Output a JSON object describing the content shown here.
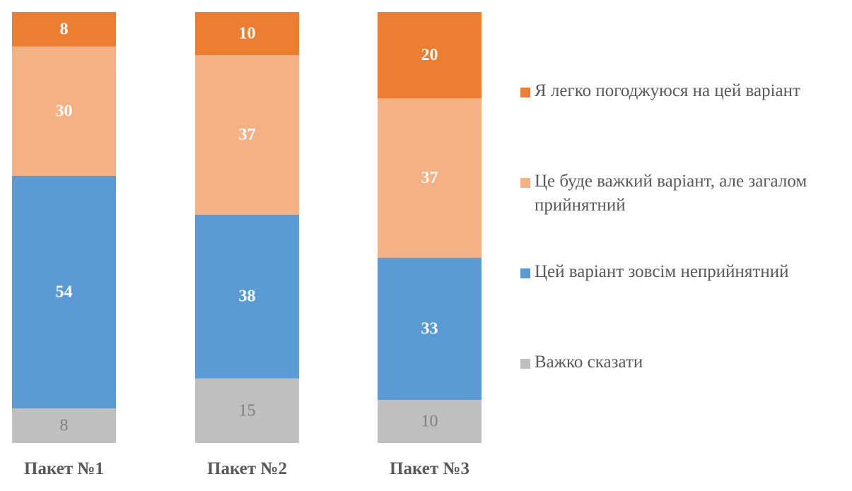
{
  "chart_data": {
    "type": "bar",
    "stacked": true,
    "orientation": "vertical",
    "categories": [
      "Пакет №1",
      "Пакет №2",
      "Пакет №3"
    ],
    "series": [
      {
        "name": "Важко сказати",
        "color": "#BFBFBF",
        "label_color": "#7F7F7F",
        "values": [
          8,
          15,
          10
        ]
      },
      {
        "name": "Цей варіант зовсім неприйнятний",
        "color": "#5B9BD5",
        "label_color": "#FFFFFF",
        "values": [
          54,
          38,
          33
        ]
      },
      {
        "name": "Це буде важкий варіант, але загалом прийнятний",
        "color": "#F4B183",
        "label_color": "#FFFFFF",
        "values": [
          30,
          37,
          37
        ]
      },
      {
        "name": "Я легко погоджуюся на цей варіант",
        "color": "#ED7D31",
        "label_color": "#FFFFFF",
        "values": [
          8,
          10,
          20
        ]
      }
    ],
    "legend_order": [
      3,
      2,
      1,
      0
    ],
    "legend_position": "right",
    "ylim": [
      0,
      100
    ],
    "grid": false,
    "data_labels": true
  }
}
